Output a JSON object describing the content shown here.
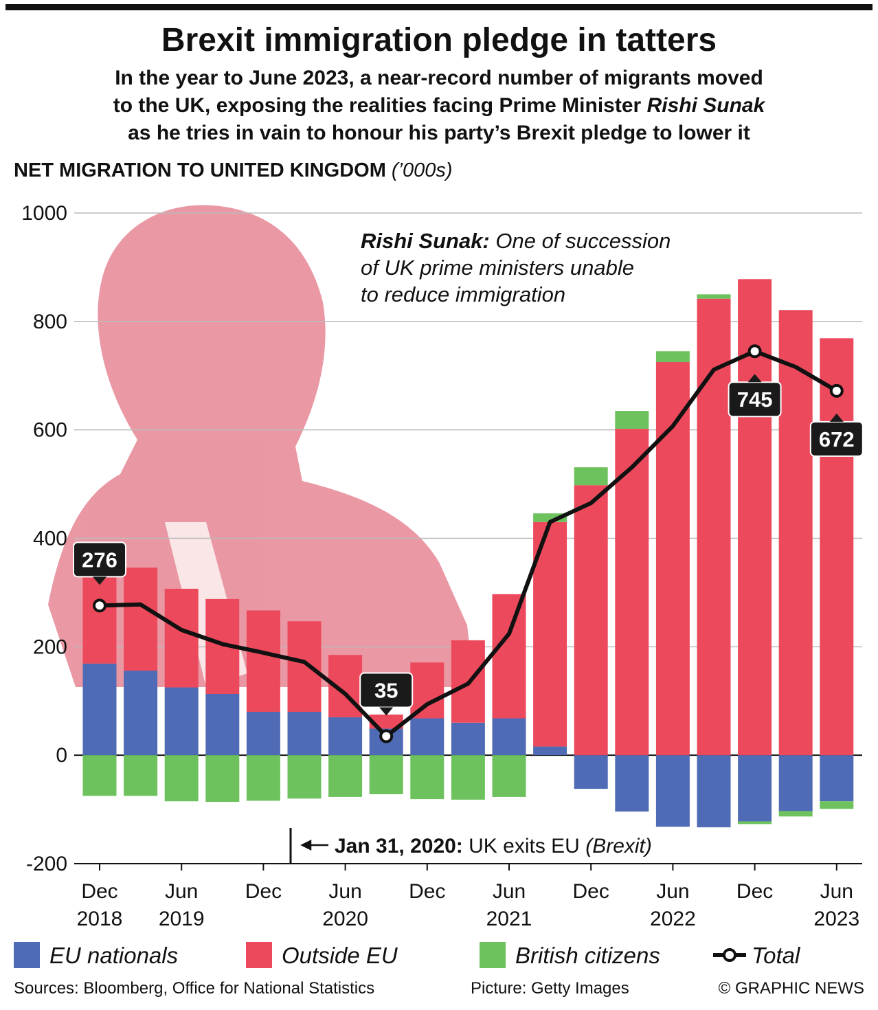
{
  "chart_data": {
    "type": "stacked-bar-line",
    "title": "Brexit immigration pledge in tatters",
    "subtitle": {
      "line1": "In the year to June 2023, a near-record number of migrants moved",
      "line2": "to the UK, exposing the realities facing Prime Minister",
      "line2_italic": "Rishi Sunak",
      "line3": "as he tries in vain to honour his party’s Brexit pledge to lower it"
    },
    "y_label": "NET MIGRATION TO UNITED KINGDOM",
    "y_unit": "(’000s)",
    "categories": [
      "Dec 2018",
      null,
      "Jun 2019",
      null,
      "Dec",
      null,
      "Jun 2020",
      null,
      "Dec",
      null,
      "Jun 2021",
      null,
      "Dec",
      null,
      "Jun 2022",
      null,
      "Dec",
      null,
      "Jun 2023"
    ],
    "series": [
      {
        "name": "EU nationals",
        "color": "#4f6bb5",
        "values": [
          169,
          156,
          125,
          113,
          80,
          80,
          70,
          49,
          68,
          60,
          68,
          16,
          -62,
          -104,
          -132,
          -133,
          -122,
          -103,
          -85
        ]
      },
      {
        "name": "Outside EU",
        "color": "#ec4a5c",
        "values": [
          159,
          190,
          182,
          175,
          187,
          167,
          115,
          26,
          103,
          152,
          229,
          414,
          498,
          602,
          725,
          842,
          878,
          821,
          769
        ]
      },
      {
        "name": "British citizens",
        "color": "#6ec25e",
        "values": [
          -75,
          -75,
          -85,
          -86,
          -84,
          -80,
          -77,
          -72,
          -81,
          -82,
          -77,
          16,
          33,
          33,
          20,
          8,
          -5,
          -10,
          -14
        ]
      },
      {
        "name": "Total",
        "color": "#111111",
        "kind": "line",
        "values": [
          276,
          278,
          231,
          205,
          189,
          172,
          113,
          35,
          94,
          132,
          224,
          430,
          465,
          531,
          607,
          711,
          745,
          716,
          672
        ],
        "value_labels": [
          "276",
          null,
          null,
          null,
          null,
          null,
          null,
          "35",
          null,
          null,
          null,
          null,
          null,
          null,
          null,
          null,
          "745",
          null,
          "672"
        ]
      }
    ],
    "ylim": [
      -200,
      1000
    ],
    "yticks": [
      -200,
      0,
      200,
      400,
      600,
      800,
      1000
    ],
    "grid": true,
    "annotations": {
      "sunak_bold": "Rishi Sunak:",
      "sunak_line1": "One of succession",
      "sunak_line2": "of UK prime ministers unable",
      "sunak_line3": "to reduce immigration",
      "brexit_bold": "Jan 31, 2020:",
      "brexit_text": "UK exits EU",
      "brexit_italic": "(Brexit)"
    },
    "legend": "bottom",
    "footer": {
      "sources": "Sources: Bloomberg, Office for National Statistics",
      "picture": "Picture: Getty Images",
      "credit": "© GRAPHIC NEWS"
    }
  }
}
